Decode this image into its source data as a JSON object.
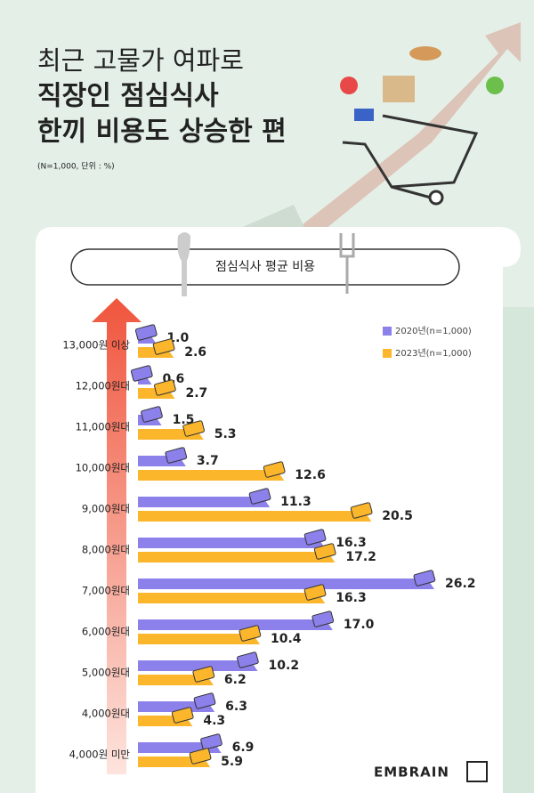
{
  "chart_data": {
    "type": "bar",
    "orientation": "horizontal",
    "title": [
      "최근 고물가 여파로",
      "직장인 점심식사",
      "한끼 비용도 상승한 편"
    ],
    "subtitle": "(N=1,000, 단위 : %)",
    "header": "점심식사 평균 비용",
    "categories": [
      "13,000원 이상",
      "12,000원대",
      "11,000원대",
      "10,000원대",
      "9,000원대",
      "8,000원대",
      "7,000원대",
      "6,000원대",
      "5,000원대",
      "4,000원대",
      "4,000원 미만"
    ],
    "series": [
      {
        "name": "2020년(n=1,000)",
        "color": "#8c80ea",
        "values": [
          1.0,
          0.6,
          1.5,
          3.7,
          11.3,
          16.3,
          26.2,
          17.0,
          10.2,
          6.3,
          6.9
        ],
        "value_labels": [
          "1.0",
          "0.6",
          "1.5",
          "3.7",
          "11.3",
          "16.3",
          "26.2",
          "17.0",
          "10.2",
          "6.3",
          "6.9"
        ]
      },
      {
        "name": "2023년(n=1,000)",
        "color": "#fbb62c",
        "values": [
          2.6,
          2.7,
          5.3,
          12.6,
          20.5,
          17.2,
          16.3,
          10.4,
          6.2,
          4.3,
          5.9
        ],
        "value_labels": [
          "2.6",
          "2.7",
          "5.3",
          "12.6",
          "20.5",
          "17.2",
          "16.3",
          "10.4",
          "6.2",
          "4.3",
          "5.9"
        ]
      }
    ],
    "legend": "top-right"
  },
  "brand": "EMBRAIN"
}
